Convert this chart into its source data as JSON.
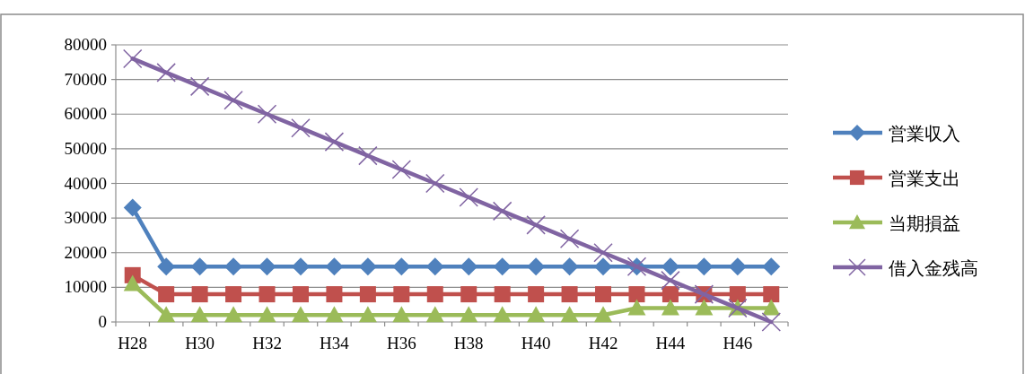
{
  "chart_data": {
    "type": "line",
    "categories": [
      "H28",
      null,
      "H30",
      null,
      "H32",
      null,
      "H34",
      null,
      "H36",
      null,
      "H38",
      null,
      "H40",
      null,
      "H42",
      null,
      "H44",
      null,
      "H46",
      null
    ],
    "series": [
      {
        "name": "営業収入",
        "color": "#4f81bd",
        "marker": "diamond",
        "values": [
          33000,
          16000,
          16000,
          16000,
          16000,
          16000,
          16000,
          16000,
          16000,
          16000,
          16000,
          16000,
          16000,
          16000,
          16000,
          16000,
          16000,
          16000,
          16000,
          16000
        ]
      },
      {
        "name": "営業支出",
        "color": "#c0504d",
        "marker": "square",
        "values": [
          13500,
          8000,
          8000,
          8000,
          8000,
          8000,
          8000,
          8000,
          8000,
          8000,
          8000,
          8000,
          8000,
          8000,
          8000,
          8000,
          8000,
          8000,
          8000,
          8000
        ]
      },
      {
        "name": "当期損益",
        "color": "#9bbb59",
        "marker": "triangle",
        "values": [
          11000,
          2000,
          2000,
          2000,
          2000,
          2000,
          2000,
          2000,
          2000,
          2000,
          2000,
          2000,
          2000,
          2000,
          2000,
          4000,
          4000,
          4000,
          4000,
          4000
        ]
      },
      {
        "name": "借入金残高",
        "color": "#8064a2",
        "marker": "cross",
        "values": [
          76000,
          72000,
          68000,
          64000,
          60000,
          56000,
          52000,
          48000,
          44000,
          40000,
          36000,
          32000,
          28000,
          24000,
          20000,
          16000,
          12000,
          8000,
          4000,
          0
        ]
      }
    ],
    "ylim": [
      0,
      80000
    ],
    "yticks": [
      0,
      10000,
      20000,
      30000,
      40000,
      50000,
      60000,
      70000,
      80000
    ],
    "grid": "y",
    "legend": "right"
  }
}
